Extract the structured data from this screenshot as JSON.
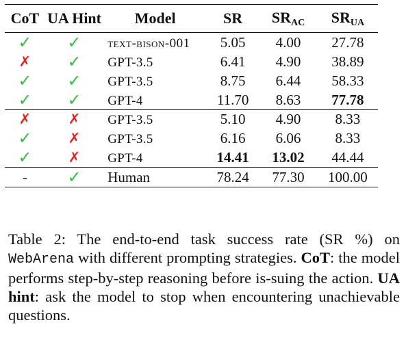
{
  "table": {
    "headers": {
      "cot": "CoT",
      "ua_hint": "UA Hint",
      "model": "Model",
      "sr": "SR",
      "sr_ac_main": "SR",
      "sr_ac_sub": "AC",
      "sr_ua_main": "SR",
      "sr_ua_sub": "UA"
    },
    "groups": [
      [
        {
          "cot": "check",
          "ua": "check",
          "model": "text-bison-001",
          "smallcaps": true,
          "sr": "5.05",
          "sr_ac": "4.00",
          "sr_ua": "27.78",
          "bold": []
        },
        {
          "cot": "cross",
          "ua": "check",
          "model": "GPT-3.5",
          "sr": "6.41",
          "sr_ac": "4.90",
          "sr_ua": "38.89",
          "bold": []
        },
        {
          "cot": "check",
          "ua": "check",
          "model": "GPT-3.5",
          "sr": "8.75",
          "sr_ac": "6.44",
          "sr_ua": "58.33",
          "bold": []
        },
        {
          "cot": "check",
          "ua": "check",
          "model": "GPT-4",
          "sr": "11.70",
          "sr_ac": "8.63",
          "sr_ua": "77.78",
          "bold": [
            "sr_ua"
          ]
        }
      ],
      [
        {
          "cot": "cross",
          "ua": "cross",
          "model": "GPT-3.5",
          "sr": "5.10",
          "sr_ac": "4.90",
          "sr_ua": "8.33",
          "bold": []
        },
        {
          "cot": "check",
          "ua": "cross",
          "model": "GPT-3.5",
          "sr": "6.16",
          "sr_ac": "6.06",
          "sr_ua": "8.33",
          "bold": []
        },
        {
          "cot": "check",
          "ua": "cross",
          "model": "GPT-4",
          "sr": "14.41",
          "sr_ac": "13.02",
          "sr_ua": "44.44",
          "bold": [
            "sr",
            "sr_ac"
          ]
        }
      ],
      [
        {
          "cot": "dash",
          "ua": "check",
          "model": "Human",
          "plain": true,
          "sr": "78.24",
          "sr_ac": "77.30",
          "sr_ua": "100.00",
          "bold": []
        }
      ]
    ],
    "marks": {
      "check": "✓",
      "cross": "✗",
      "dash": "-"
    }
  },
  "caption": {
    "label": "Table 2: The end-to-end task success rate (SR %) on",
    "env": "WebArena",
    "text1": " with different prompting strategies. ",
    "cot_term": "CoT",
    "text2": ": the model performs step-by-step reasoning before is-suing the action. ",
    "ua_term": "UA hint",
    "text3": ": ask the model to stop when encountering unachievable questions."
  }
}
